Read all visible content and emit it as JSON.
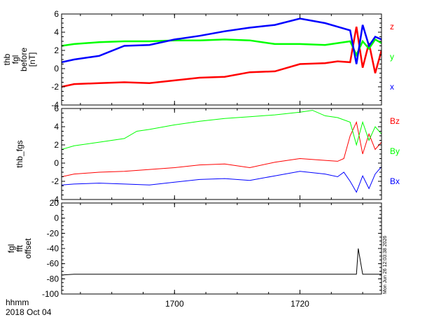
{
  "chart_data": [
    {
      "type": "line",
      "panel": "top",
      "ylabel_lines": [
        "thb",
        "fgl",
        "before",
        "[nT]"
      ],
      "ylim": [
        -4,
        6
      ],
      "yticks": [
        -4,
        -2,
        0,
        2,
        4,
        6
      ],
      "series": [
        {
          "name": "z",
          "color": "#ff0000",
          "x": [
            1682,
            1684,
            1688,
            1692,
            1696,
            1700,
            1704,
            1708,
            1712,
            1716,
            1720,
            1724,
            1726,
            1728,
            1729,
            1730,
            1731,
            1732,
            1733
          ],
          "y": [
            -2.0,
            -1.7,
            -1.6,
            -1.5,
            -1.6,
            -1.3,
            -1.0,
            -0.9,
            -0.4,
            -0.3,
            0.5,
            0.6,
            0.8,
            0.7,
            4.6,
            0.1,
            2.8,
            -0.5,
            2.0
          ]
        },
        {
          "name": "y",
          "color": "#00ff00",
          "x": [
            1682,
            1684,
            1688,
            1692,
            1696,
            1700,
            1704,
            1708,
            1712,
            1716,
            1720,
            1724,
            1726,
            1728,
            1729,
            1730,
            1731,
            1732,
            1733
          ],
          "y": [
            2.5,
            2.7,
            2.9,
            3.0,
            3.0,
            3.1,
            3.1,
            3.2,
            3.1,
            2.7,
            2.7,
            2.6,
            2.8,
            3.0,
            1.5,
            3.0,
            2.2,
            3.2,
            2.8
          ]
        },
        {
          "name": "x",
          "color": "#0000ff",
          "x": [
            1682,
            1684,
            1688,
            1692,
            1696,
            1700,
            1704,
            1708,
            1712,
            1716,
            1720,
            1724,
            1726,
            1728,
            1729,
            1730,
            1731,
            1732,
            1733
          ],
          "y": [
            0.7,
            1.0,
            1.4,
            2.5,
            2.6,
            3.2,
            3.6,
            4.1,
            4.5,
            4.8,
            5.5,
            5.0,
            4.6,
            4.2,
            0.5,
            4.8,
            2.5,
            3.5,
            3.2
          ]
        }
      ]
    },
    {
      "type": "line",
      "panel": "middle",
      "ylabel_lines": [
        "thb_fgs"
      ],
      "ylim": [
        -4,
        6
      ],
      "yticks": [
        -4,
        -2,
        0,
        2,
        4,
        6
      ],
      "series": [
        {
          "name": "Bz",
          "color": "#ff0000",
          "x": [
            1682,
            1684,
            1688,
            1692,
            1696,
            1700,
            1704,
            1708,
            1712,
            1716,
            1720,
            1724,
            1726,
            1727,
            1728,
            1729,
            1730,
            1731,
            1732,
            1733
          ],
          "y": [
            -1.5,
            -1.2,
            -1.0,
            -0.9,
            -0.7,
            -0.5,
            -0.2,
            -0.1,
            -0.5,
            0.1,
            0.5,
            0.3,
            0.2,
            0.5,
            3.0,
            4.5,
            1.0,
            3.2,
            1.5,
            2.3
          ]
        },
        {
          "name": "By",
          "color": "#00ff00",
          "x": [
            1682,
            1684,
            1688,
            1692,
            1694,
            1696,
            1700,
            1704,
            1708,
            1712,
            1716,
            1720,
            1722,
            1724,
            1726,
            1728,
            1729,
            1730,
            1731,
            1732,
            1733
          ],
          "y": [
            1.5,
            1.9,
            2.3,
            2.7,
            3.5,
            3.7,
            4.2,
            4.6,
            4.9,
            5.1,
            5.3,
            5.6,
            5.8,
            5.2,
            5.0,
            4.5,
            2.0,
            4.5,
            2.5,
            4.0,
            3.2
          ]
        },
        {
          "name": "Bx",
          "color": "#0000ff",
          "x": [
            1682,
            1684,
            1688,
            1692,
            1696,
            1700,
            1704,
            1708,
            1712,
            1716,
            1720,
            1724,
            1726,
            1727,
            1728,
            1729,
            1730,
            1731,
            1732,
            1733
          ],
          "y": [
            -2.4,
            -2.3,
            -2.2,
            -2.3,
            -2.4,
            -2.1,
            -1.8,
            -1.7,
            -1.9,
            -1.4,
            -0.9,
            -1.2,
            -1.5,
            -1.0,
            -2.0,
            -3.2,
            -1.4,
            -2.8,
            -1.2,
            -0.4
          ]
        }
      ]
    },
    {
      "type": "line",
      "panel": "bottom",
      "ylabel_lines": [
        "fgl",
        "fft",
        "offset"
      ],
      "ylim": [
        -100,
        20
      ],
      "yticks": [
        -100,
        -80,
        -60,
        -40,
        -20,
        0,
        20
      ],
      "series": [
        {
          "name": "offset",
          "color": "#000000",
          "x": [
            1682,
            1684,
            1688,
            1692,
            1696,
            1700,
            1704,
            1708,
            1712,
            1716,
            1720,
            1724,
            1728,
            1729,
            1729.3,
            1730,
            1733
          ],
          "y": [
            -75,
            -74,
            -74,
            -74,
            -74,
            -74,
            -74,
            -74,
            -74,
            -74,
            -74,
            -74,
            -74,
            -74,
            -40,
            -74,
            -74
          ]
        }
      ]
    }
  ],
  "x_axis": {
    "range": [
      1682,
      1733
    ],
    "ticks": [
      1700,
      1720
    ],
    "tick_labels": [
      "1700",
      "1720"
    ],
    "label_line1": "hhmm",
    "label_line2": "2018 Oct 04"
  },
  "timestamp": "Mon Jun 26 12:03:38 2026",
  "colors": {
    "axis": "#000000",
    "background": "#ffffff"
  }
}
